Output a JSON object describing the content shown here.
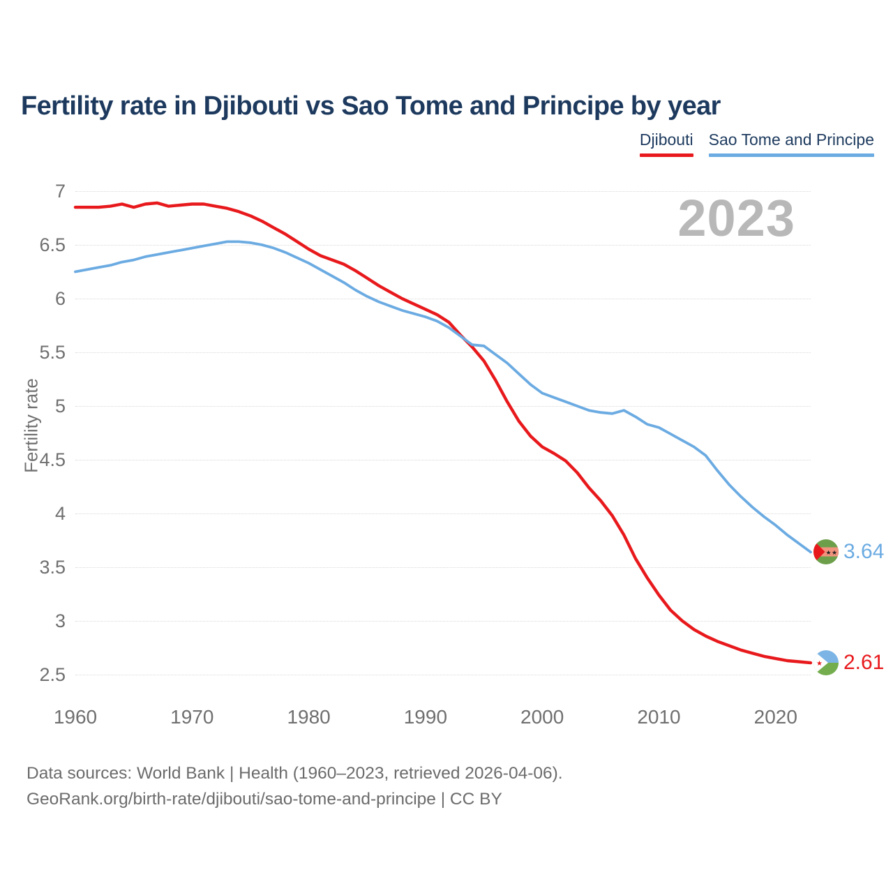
{
  "header": {
    "title": "Fertility rate in Djibouti vs Sao Tome and Principe by year"
  },
  "legend": {
    "items": [
      {
        "label": "Djibouti",
        "color": "#e8191c"
      },
      {
        "label": "Sao Tome and Principe",
        "color": "#6babe2"
      }
    ]
  },
  "watermark": "2023",
  "axes": {
    "y_title": "Fertility rate",
    "y_ticks": [
      {
        "value": 7,
        "label": "7"
      },
      {
        "value": 6.5,
        "label": "6.5"
      },
      {
        "value": 6,
        "label": "6"
      },
      {
        "value": 5.5,
        "label": "5.5"
      },
      {
        "value": 5,
        "label": "5"
      },
      {
        "value": 4.5,
        "label": "4.5"
      },
      {
        "value": 4,
        "label": "4"
      },
      {
        "value": 3.5,
        "label": "3.5"
      },
      {
        "value": 3,
        "label": "3"
      },
      {
        "value": 2.5,
        "label": "2.5"
      }
    ],
    "x_ticks": [
      {
        "value": 1960,
        "label": "1960"
      },
      {
        "value": 1970,
        "label": "1970"
      },
      {
        "value": 1980,
        "label": "1980"
      },
      {
        "value": 1990,
        "label": "1990"
      },
      {
        "value": 2000,
        "label": "2000"
      },
      {
        "value": 2010,
        "label": "2010"
      },
      {
        "value": 2020,
        "label": "2020"
      }
    ]
  },
  "footer": {
    "line1": "Data sources: World Bank | Health (1960–2023, retrieved 2026-04-06).",
    "line2": "GeoRank.org/birth-rate/djibouti/sao-tome-and-principe | CC BY"
  },
  "chart_data": {
    "type": "line",
    "title": "Fertility rate in Djibouti vs Sao Tome and Principe by year",
    "xlabel": "",
    "ylabel": "Fertility rate",
    "xlim": [
      1960,
      2023
    ],
    "ylim": [
      2.5,
      7
    ],
    "grid": "horizontal",
    "legend_position": "top-right",
    "year_annotation": "2023",
    "x": [
      1960,
      1961,
      1962,
      1963,
      1964,
      1965,
      1966,
      1967,
      1968,
      1969,
      1970,
      1971,
      1972,
      1973,
      1974,
      1975,
      1976,
      1977,
      1978,
      1979,
      1980,
      1981,
      1982,
      1983,
      1984,
      1985,
      1986,
      1987,
      1988,
      1989,
      1990,
      1991,
      1992,
      1993,
      1994,
      1995,
      1996,
      1997,
      1998,
      1999,
      2000,
      2001,
      2002,
      2003,
      2004,
      2005,
      2006,
      2007,
      2008,
      2009,
      2010,
      2011,
      2012,
      2013,
      2014,
      2015,
      2016,
      2017,
      2018,
      2019,
      2020,
      2021,
      2022,
      2023
    ],
    "series": [
      {
        "name": "Djibouti",
        "color": "#e8191c",
        "end_label": "2.61",
        "flag_icon": "djibouti-flag-icon",
        "values": [
          6.85,
          6.85,
          6.85,
          6.86,
          6.88,
          6.85,
          6.88,
          6.89,
          6.86,
          6.87,
          6.88,
          6.88,
          6.86,
          6.84,
          6.81,
          6.77,
          6.72,
          6.66,
          6.6,
          6.53,
          6.46,
          6.4,
          6.36,
          6.32,
          6.26,
          6.19,
          6.12,
          6.06,
          6.0,
          5.95,
          5.9,
          5.85,
          5.78,
          5.66,
          5.55,
          5.42,
          5.24,
          5.04,
          4.86,
          4.72,
          4.62,
          4.56,
          4.49,
          4.38,
          4.24,
          4.12,
          3.98,
          3.8,
          3.58,
          3.4,
          3.24,
          3.1,
          3.0,
          2.92,
          2.86,
          2.81,
          2.77,
          2.73,
          2.7,
          2.67,
          2.65,
          2.63,
          2.62,
          2.61
        ]
      },
      {
        "name": "Sao Tome and Principe",
        "color": "#6babe2",
        "end_label": "3.64",
        "flag_icon": "sao-tome-and-principe-flag-icon",
        "values": [
          6.25,
          6.27,
          6.29,
          6.31,
          6.34,
          6.36,
          6.39,
          6.41,
          6.43,
          6.45,
          6.47,
          6.49,
          6.51,
          6.53,
          6.53,
          6.52,
          6.5,
          6.47,
          6.43,
          6.38,
          6.33,
          6.27,
          6.21,
          6.15,
          6.08,
          6.02,
          5.97,
          5.93,
          5.89,
          5.86,
          5.83,
          5.79,
          5.73,
          5.65,
          5.57,
          5.56,
          5.48,
          5.4,
          5.3,
          5.2,
          5.12,
          5.08,
          5.04,
          5.0,
          4.96,
          4.94,
          4.93,
          4.96,
          4.9,
          4.83,
          4.8,
          4.74,
          4.68,
          4.62,
          4.54,
          4.4,
          4.27,
          4.16,
          4.06,
          3.97,
          3.89,
          3.8,
          3.72,
          3.64
        ]
      }
    ]
  }
}
